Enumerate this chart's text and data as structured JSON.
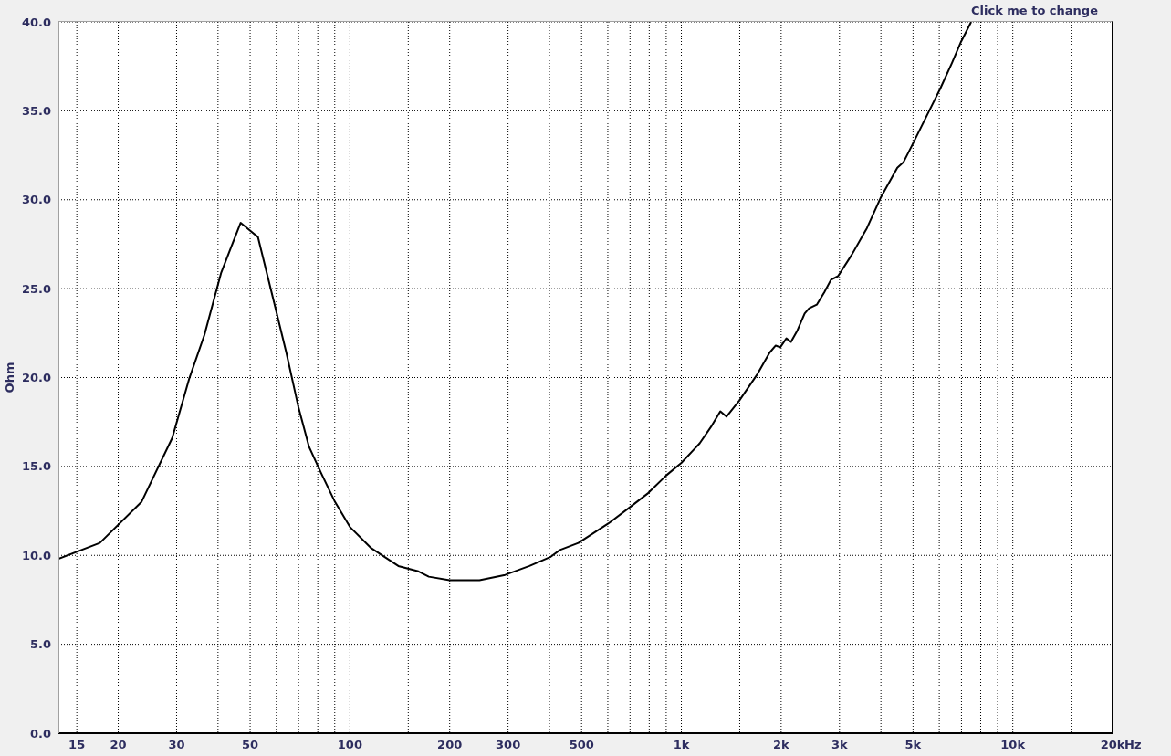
{
  "chart_data": {
    "type": "line",
    "xlabel": "Hz",
    "ylabel": "Ohm",
    "annotations": [
      "Click me to change"
    ],
    "x": [
      13.2,
      17.6,
      23.5,
      29.1,
      32.7,
      36.4,
      40.9,
      46.8,
      52.8,
      59.1,
      64.3,
      70,
      75.3,
      82,
      90.2,
      100,
      116,
      140,
      161,
      173,
      200,
      246,
      294,
      348,
      402,
      430,
      489,
      603,
      699,
      794,
      901,
      1000,
      1136,
      1236,
      1311,
      1368,
      1495,
      1697,
      1846,
      1926,
      1988,
      2074,
      2141,
      2233,
      2355,
      2430,
      2562,
      2701,
      2828,
      2969,
      3266,
      3629,
      3990,
      4483,
      4675,
      4980,
      5595,
      6025,
      6555,
      6985,
      7488
    ],
    "values": [
      9.8,
      10.7,
      13.0,
      16.6,
      19.9,
      22.4,
      25.9,
      28.7,
      27.9,
      24.2,
      21.4,
      18.3,
      16.1,
      14.6,
      13.0,
      11.6,
      10.4,
      9.4,
      9.1,
      8.8,
      8.6,
      8.6,
      8.9,
      9.4,
      9.9,
      10.3,
      10.7,
      11.8,
      12.7,
      13.5,
      14.5,
      15.2,
      16.3,
      17.3,
      18.1,
      17.8,
      18.7,
      20.2,
      21.4,
      21.8,
      21.7,
      22.2,
      22.0,
      22.6,
      23.6,
      23.9,
      24.1,
      24.8,
      25.5,
      25.7,
      26.9,
      28.4,
      30.1,
      31.8,
      32.1,
      33.1,
      35.0,
      36.2,
      37.7,
      38.9,
      40.0
    ],
    "color": "#000000",
    "xlim": [
      13.2,
      20000
    ],
    "ylim": [
      0,
      40
    ],
    "xticks": [
      15,
      20,
      30,
      {
        "value": 40,
        "label": null
      },
      50,
      {
        "value": 60,
        "label": null
      },
      {
        "value": 70,
        "label": null
      },
      {
        "value": 80,
        "label": null
      },
      {
        "value": 90,
        "label": null
      },
      100,
      {
        "value": 150,
        "label": null
      },
      200,
      300,
      {
        "value": 400,
        "label": null
      },
      500,
      {
        "value": 600,
        "label": null
      },
      {
        "value": 700,
        "label": null
      },
      {
        "value": 800,
        "label": null
      },
      {
        "value": 900,
        "label": null
      },
      {
        "value": 1000,
        "label": "1k"
      },
      {
        "value": 1500,
        "label": null
      },
      {
        "value": 2000,
        "label": "2k"
      },
      {
        "value": 3000,
        "label": "3k"
      },
      {
        "value": 4000,
        "label": null
      },
      {
        "value": 5000,
        "label": "5k"
      },
      {
        "value": 6000,
        "label": null
      },
      {
        "value": 7000,
        "label": null
      },
      {
        "value": 8000,
        "label": null
      },
      {
        "value": 9000,
        "label": null
      },
      {
        "value": 10000,
        "label": "10k"
      },
      {
        "value": 15000,
        "label": null
      },
      {
        "value": 20000,
        "label": "20k"
      }
    ],
    "yticks": [
      {
        "value": 0,
        "label": "0.0"
      },
      {
        "value": 5,
        "label": "5.0"
      },
      {
        "value": 10,
        "label": "10.0"
      },
      {
        "value": 15,
        "label": "15.0"
      },
      {
        "value": 20,
        "label": "20.0"
      },
      {
        "value": 25,
        "label": "25.0"
      },
      {
        "value": 30,
        "label": "30.0"
      },
      {
        "value": 35,
        "label": "35.0"
      },
      {
        "value": 40,
        "label": "40.0"
      }
    ],
    "log": "x",
    "grid": true
  }
}
